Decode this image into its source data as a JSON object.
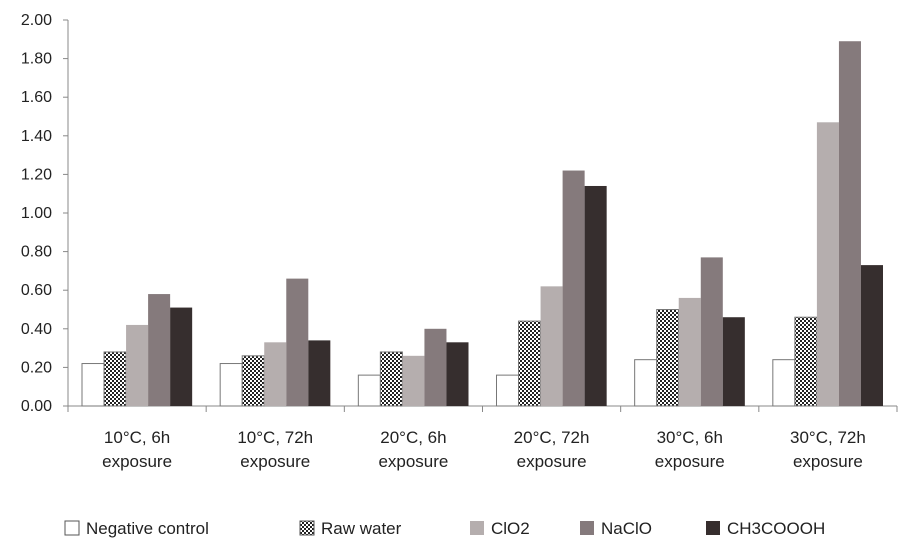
{
  "chart_data": {
    "type": "bar",
    "categories": [
      [
        "10°C, 6h",
        "exposure"
      ],
      [
        "10°C, 72h",
        "exposure"
      ],
      [
        "20°C, 6h",
        "exposure"
      ],
      [
        "20°C, 72h",
        "exposure"
      ],
      [
        "30°C, 6h",
        "exposure"
      ],
      [
        "30°C, 72h",
        "exposure"
      ]
    ],
    "series": [
      {
        "name": "Negative control",
        "values": [
          0.22,
          0.22,
          0.16,
          0.16,
          0.24,
          0.24
        ],
        "fill": "#ffffff",
        "pattern": "none"
      },
      {
        "name": "Raw water",
        "values": [
          0.28,
          0.26,
          0.28,
          0.44,
          0.5,
          0.46
        ],
        "fill": "#ffffff",
        "pattern": "dots"
      },
      {
        "name": "ClO2",
        "values": [
          0.42,
          0.33,
          0.26,
          0.62,
          0.56,
          1.47
        ],
        "fill": "#b5aeae",
        "pattern": "none"
      },
      {
        "name": "NaClO",
        "values": [
          0.58,
          0.66,
          0.4,
          1.22,
          0.77,
          1.89
        ],
        "fill": "#857a7c",
        "pattern": "none"
      },
      {
        "name": "CH3COOOH",
        "values": [
          0.51,
          0.34,
          0.33,
          1.14,
          0.46,
          0.73
        ],
        "fill": "#362e2e",
        "pattern": "none"
      }
    ],
    "yticks": [
      "0.00",
      "0.20",
      "0.40",
      "0.60",
      "0.80",
      "1.00",
      "1.20",
      "1.40",
      "1.60",
      "1.80",
      "2.00"
    ],
    "ylim": [
      0,
      2.0
    ],
    "title": "",
    "xlabel": "",
    "ylabel": "",
    "grid": false,
    "legend_position": "bottom"
  }
}
